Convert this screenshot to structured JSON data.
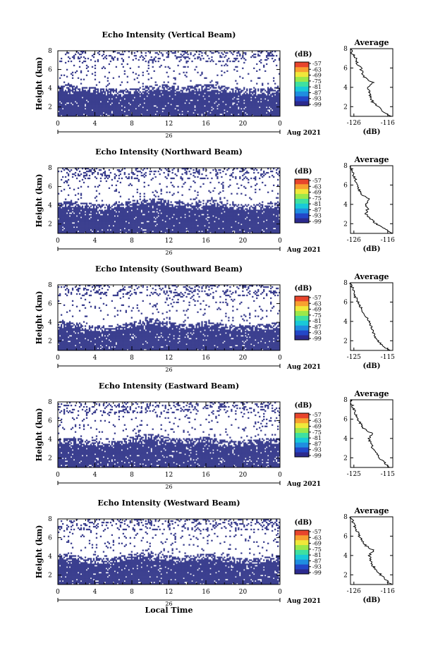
{
  "figure": {
    "xlabel": "Local Time",
    "units_label": "(dB)",
    "date_label": "Aug 2021",
    "day_label": "26",
    "avg_title": "Average",
    "ylabel": "Height (km)",
    "colorbar_ticks": [
      "-57",
      "-63",
      "-69",
      "-75",
      "-81",
      "-87",
      "-93",
      "-99"
    ],
    "colors": {
      "background_color": "#3b3f8f",
      "colormap": [
        "#2c2a8e",
        "#2347c8",
        "#1f8ee0",
        "#19c9d8",
        "#3fe0a0",
        "#9be84a",
        "#f0e83a",
        "#f8a030",
        "#e8452c"
      ]
    }
  },
  "chart_data": [
    {
      "type": "heatmap",
      "title": "Echo Intensity (Vertical Beam)",
      "xlabel": "",
      "ylabel": "Height (km)",
      "xticks": [
        "0",
        "4",
        "8",
        "12",
        "16",
        "20",
        "0"
      ],
      "yticks": [
        "2",
        "4",
        "6",
        "8"
      ],
      "xlim": [
        0,
        24
      ],
      "ylim": [
        1,
        8
      ],
      "color_range_db": [
        -99,
        -57
      ],
      "echo_top_km": [
        4.0,
        4.1,
        4.0,
        3.9,
        3.8,
        3.7,
        3.6,
        3.6,
        3.7,
        3.9,
        4.0,
        4.2,
        4.0,
        3.8,
        3.9,
        4.1,
        4.2,
        4.0,
        3.9,
        3.8,
        3.7,
        3.6,
        3.7,
        3.8,
        3.9
      ]
    },
    {
      "type": "line",
      "title": "Average",
      "xlabel": "(dB)",
      "ylabel": "",
      "xticks": [
        "-126",
        "-116"
      ],
      "yticks": [
        "2",
        "4",
        "6",
        "8"
      ],
      "xlim": [
        -127,
        -114.5
      ],
      "ylim": [
        1,
        8
      ],
      "height_km": [
        1.0,
        1.5,
        2.0,
        2.5,
        3.0,
        3.5,
        4.0,
        4.5,
        5.0,
        5.5,
        6.0,
        6.5,
        7.0,
        7.5,
        8.0
      ],
      "avg_db": [
        -115.0,
        -117.5,
        -119.0,
        -120.5,
        -121.0,
        -121.5,
        -122.0,
        -120.5,
        -122.8,
        -123.5,
        -124.0,
        -125.0,
        -125.5,
        -126.5,
        -127.0
      ]
    },
    {
      "type": "heatmap",
      "title": "Echo Intensity (Northward Beam)",
      "xlabel": "",
      "ylabel": "Height (km)",
      "xticks": [
        "0",
        "4",
        "8",
        "12",
        "16",
        "20",
        "0"
      ],
      "yticks": [
        "2",
        "4",
        "6",
        "8"
      ],
      "xlim": [
        0,
        24
      ],
      "ylim": [
        1,
        8
      ],
      "color_range_db": [
        -99,
        -57
      ],
      "echo_top_km": [
        4.1,
        4.2,
        4.1,
        4.0,
        3.9,
        3.8,
        3.9,
        4.0,
        4.2,
        4.4,
        4.5,
        4.4,
        4.2,
        4.1,
        4.0,
        4.1,
        4.3,
        4.2,
        4.0,
        3.9,
        3.8,
        3.8,
        3.9,
        4.0,
        4.1
      ]
    },
    {
      "type": "line",
      "title": "Average",
      "xlabel": "(dB)",
      "ylabel": "",
      "xticks": [
        "-126",
        "-116"
      ],
      "yticks": [
        "2",
        "4",
        "6",
        "8"
      ],
      "xlim": [
        -127,
        -114.5
      ],
      "ylim": [
        1,
        8
      ],
      "height_km": [
        1.0,
        1.5,
        2.0,
        2.5,
        3.0,
        3.5,
        4.0,
        4.5,
        5.0,
        5.5,
        6.0,
        6.5,
        7.0,
        7.5,
        8.0
      ],
      "avg_db": [
        -115.0,
        -117.0,
        -119.5,
        -121.0,
        -122.5,
        -122.0,
        -122.5,
        -121.5,
        -123.5,
        -124.5,
        -124.8,
        -125.5,
        -126.2,
        -126.5,
        -127.0
      ]
    },
    {
      "type": "heatmap",
      "title": "Echo Intensity (Southward Beam)",
      "xlabel": "",
      "ylabel": "Height (km)",
      "xticks": [
        "0",
        "4",
        "8",
        "12",
        "16",
        "20",
        "0"
      ],
      "yticks": [
        "2",
        "4",
        "6",
        "8"
      ],
      "xlim": [
        0,
        24
      ],
      "ylim": [
        1,
        8
      ],
      "color_range_db": [
        -99,
        -57
      ],
      "echo_top_km": [
        3.9,
        3.8,
        3.6,
        3.4,
        3.4,
        3.3,
        3.4,
        3.6,
        3.8,
        4.0,
        4.1,
        3.9,
        3.7,
        3.6,
        3.6,
        3.8,
        3.9,
        3.7,
        3.5,
        3.4,
        3.3,
        3.4,
        3.5,
        3.6,
        3.7
      ]
    },
    {
      "type": "line",
      "title": "Average",
      "xlabel": "(dB)",
      "ylabel": "",
      "xticks": [
        "-125",
        "-115"
      ],
      "yticks": [
        "2",
        "4",
        "6",
        "8"
      ],
      "xlim": [
        -126,
        -113.5
      ],
      "ylim": [
        1,
        8
      ],
      "height_km": [
        1.0,
        1.5,
        2.0,
        2.5,
        3.0,
        3.5,
        4.0,
        4.5,
        5.0,
        5.5,
        6.0,
        6.5,
        7.0,
        7.5,
        8.0
      ],
      "avg_db": [
        -114.5,
        -116.5,
        -118.0,
        -119.0,
        -119.5,
        -120.0,
        -120.5,
        -121.5,
        -122.5,
        -123.0,
        -123.8,
        -124.5,
        -125.0,
        -125.5,
        -126.0
      ]
    },
    {
      "type": "heatmap",
      "title": "Echo Intensity (Eastward Beam)",
      "xlabel": "",
      "ylabel": "Height (km)",
      "xticks": [
        "0",
        "4",
        "8",
        "12",
        "16",
        "20",
        "0"
      ],
      "yticks": [
        "2",
        "4",
        "6",
        "8"
      ],
      "xlim": [
        0,
        24
      ],
      "ylim": [
        1,
        8
      ],
      "color_range_db": [
        -99,
        -57
      ],
      "echo_top_km": [
        3.8,
        3.9,
        3.8,
        3.7,
        3.6,
        3.5,
        3.6,
        3.8,
        4.0,
        4.2,
        4.3,
        4.1,
        3.9,
        3.8,
        3.8,
        3.9,
        4.0,
        3.8,
        3.7,
        3.6,
        3.6,
        3.7,
        3.8,
        3.9,
        3.9
      ]
    },
    {
      "type": "line",
      "title": "Average",
      "xlabel": "",
      "ylabel": "",
      "xticks": [
        "-125",
        "-115"
      ],
      "yticks": [
        "2",
        "4",
        "6",
        "8"
      ],
      "xlim": [
        -126,
        -113.5
      ],
      "ylim": [
        1,
        8
      ],
      "height_km": [
        1.0,
        1.5,
        2.0,
        2.5,
        3.0,
        3.5,
        4.0,
        4.5,
        5.0,
        5.5,
        6.0,
        6.5,
        7.0,
        7.5,
        8.0
      ],
      "avg_db": [
        -114.5,
        -116.0,
        -117.5,
        -118.5,
        -119.5,
        -120.0,
        -120.5,
        -119.5,
        -122.0,
        -123.0,
        -124.0,
        -124.5,
        -125.0,
        -125.5,
        -126.0
      ]
    },
    {
      "type": "heatmap",
      "title": "Echo Intensity (Westward Beam)",
      "xlabel": "Local Time",
      "ylabel": "Height (km)",
      "xticks": [
        "0",
        "4",
        "8",
        "12",
        "16",
        "20",
        "0"
      ],
      "yticks": [
        "2",
        "4",
        "6",
        "8"
      ],
      "xlim": [
        0,
        24
      ],
      "ylim": [
        1,
        8
      ],
      "color_range_db": [
        -99,
        -57
      ],
      "echo_top_km": [
        4.0,
        3.9,
        3.8,
        3.6,
        3.5,
        3.5,
        3.6,
        3.8,
        4.0,
        4.2,
        4.2,
        4.0,
        3.8,
        3.7,
        3.8,
        3.9,
        4.0,
        3.9,
        3.7,
        3.6,
        3.5,
        3.5,
        3.6,
        3.7,
        3.8
      ]
    },
    {
      "type": "line",
      "title": "Average",
      "xlabel": "(dB)",
      "ylabel": "",
      "xticks": [
        "-126",
        "-116"
      ],
      "yticks": [
        "2",
        "4",
        "6",
        "8"
      ],
      "xlim": [
        -127,
        -114.5
      ],
      "ylim": [
        1,
        8
      ],
      "height_km": [
        1.0,
        1.5,
        2.0,
        2.5,
        3.0,
        3.5,
        4.0,
        4.5,
        5.0,
        5.5,
        6.0,
        6.5,
        7.0,
        7.5,
        8.0
      ],
      "avg_db": [
        -115.0,
        -116.5,
        -118.0,
        -119.5,
        -120.5,
        -121.0,
        -121.5,
        -120.0,
        -122.5,
        -123.5,
        -124.5,
        -125.0,
        -125.8,
        -126.3,
        -127.0
      ]
    }
  ]
}
